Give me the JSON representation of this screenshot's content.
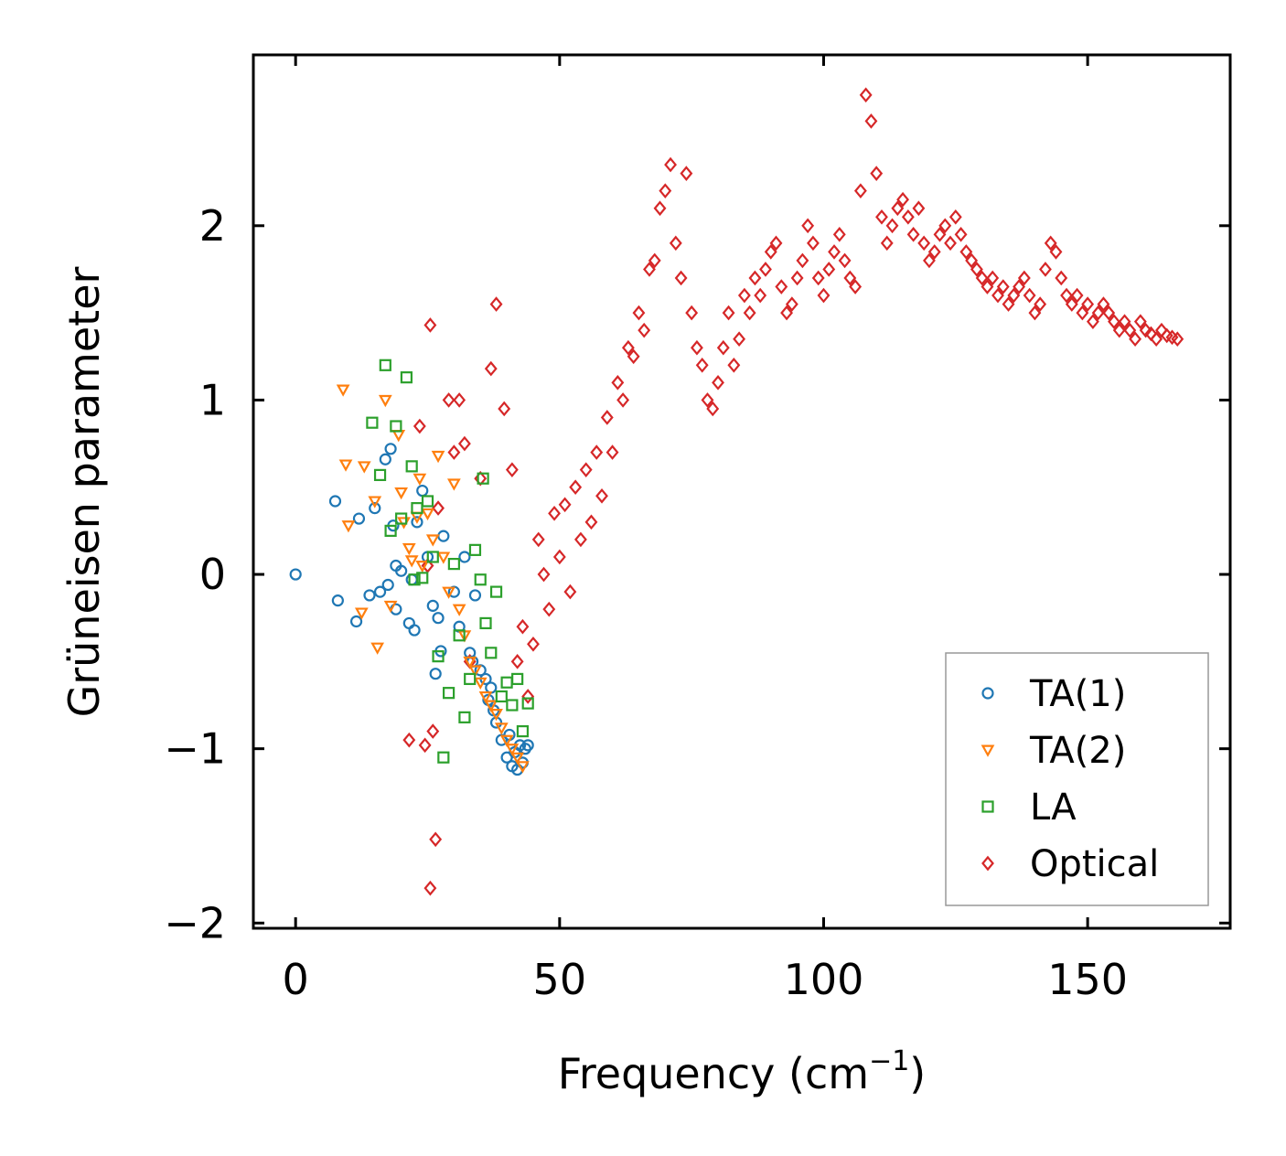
{
  "chart_data": {
    "type": "scatter",
    "title": "",
    "xlabel": "Frequency (cm",
    "xlabel_superscript": "−1",
    "xlabel_suffix": ")",
    "ylabel": "Grüneisen parameter",
    "xlim": [
      -8,
      177
    ],
    "ylim": [
      -2.03,
      2.98
    ],
    "xticks": [
      0,
      50,
      100,
      150
    ],
    "xtick_labels": [
      "0",
      "50",
      "100",
      "150"
    ],
    "yticks": [
      -2,
      -1,
      0,
      1,
      2
    ],
    "ytick_labels": [
      "−2",
      "−1",
      "0",
      "1",
      "2"
    ],
    "grid": false,
    "legend_position": "bottom-right",
    "series": [
      {
        "name": "TA(1)",
        "marker": "circle",
        "color": "#1f77b4",
        "x": [
          0,
          7.5,
          8,
          11.5,
          12,
          14,
          15,
          16,
          17,
          17.5,
          18,
          18.5,
          19,
          19,
          20,
          21.5,
          22,
          22.5,
          23,
          24,
          25,
          26,
          26.5,
          27,
          27.5,
          28,
          30,
          31,
          32,
          33,
          33.5,
          34,
          35,
          36,
          36.5,
          37,
          37.5,
          38,
          39,
          40,
          40.5,
          41,
          41.5,
          42,
          42.5,
          43,
          43.5,
          44
        ],
        "y": [
          0.0,
          0.42,
          -0.15,
          -0.27,
          0.32,
          -0.12,
          0.38,
          -0.1,
          0.66,
          -0.06,
          0.72,
          0.28,
          -0.2,
          0.05,
          0.02,
          -0.28,
          -0.03,
          -0.32,
          0.3,
          0.48,
          0.1,
          -0.18,
          -0.57,
          -0.25,
          -0.44,
          0.22,
          -0.1,
          -0.3,
          0.1,
          -0.45,
          -0.5,
          -0.12,
          -0.55,
          -0.6,
          -0.72,
          -0.65,
          -0.78,
          -0.85,
          -0.95,
          -1.05,
          -0.92,
          -1.1,
          -1.02,
          -1.12,
          -0.98,
          -1.08,
          -1.0,
          -0.98
        ]
      },
      {
        "name": "TA(2)",
        "marker": "triangle-down",
        "color": "#ff7f0e",
        "x": [
          9,
          9.5,
          10,
          12.5,
          13,
          15,
          15.5,
          17,
          18,
          19.5,
          20,
          20.5,
          21.5,
          22,
          23,
          23.5,
          24,
          25,
          26,
          27,
          28,
          29,
          30,
          31,
          32,
          33,
          34,
          35,
          36,
          37,
          38,
          39,
          40,
          41,
          42,
          43
        ],
        "y": [
          1.06,
          0.63,
          0.28,
          -0.22,
          0.62,
          0.42,
          -0.42,
          1.0,
          -0.18,
          0.8,
          0.47,
          0.3,
          0.15,
          0.08,
          0.33,
          0.55,
          0.05,
          0.35,
          0.2,
          0.68,
          0.1,
          -0.1,
          0.52,
          -0.2,
          -0.35,
          -0.5,
          -0.55,
          -0.62,
          -0.7,
          -0.75,
          -0.8,
          -0.88,
          -0.95,
          -1.0,
          -1.05,
          -1.1
        ]
      },
      {
        "name": "LA",
        "marker": "square",
        "color": "#2ca02c",
        "x": [
          14.5,
          16,
          17,
          18,
          19,
          20,
          21,
          22,
          22.5,
          23,
          24,
          25,
          26,
          27,
          28,
          29,
          30,
          31,
          32,
          33,
          34,
          35,
          35.5,
          36,
          37,
          38,
          39,
          40,
          41,
          42,
          43,
          44
        ],
        "y": [
          0.87,
          0.57,
          1.2,
          0.25,
          0.85,
          0.32,
          1.13,
          0.62,
          -0.03,
          0.38,
          -0.02,
          0.42,
          0.1,
          -0.47,
          -1.05,
          -0.68,
          0.06,
          -0.35,
          -0.82,
          -0.6,
          0.14,
          -0.03,
          0.55,
          -0.28,
          -0.45,
          -0.1,
          -0.7,
          -0.62,
          -0.75,
          -0.6,
          -0.9,
          -0.74
        ]
      },
      {
        "name": "Optical",
        "marker": "diamond",
        "color": "#d62728",
        "x": [
          25.5,
          25.5,
          26,
          26.5,
          21.5,
          23.5,
          24.5,
          25,
          27,
          29,
          30,
          31,
          32,
          33,
          35,
          37,
          38,
          39.5,
          41,
          42,
          43,
          44,
          45,
          46,
          47,
          48,
          49,
          50,
          51,
          52,
          53,
          54,
          55,
          56,
          57,
          58,
          59,
          60,
          61,
          62,
          63,
          64,
          65,
          66,
          67,
          68,
          69,
          70,
          71,
          72,
          73,
          74,
          75,
          76,
          77,
          78,
          79,
          80,
          81,
          82,
          83,
          84,
          85,
          86,
          87,
          88,
          89,
          90,
          91,
          92,
          93,
          94,
          95,
          96,
          97,
          98,
          99,
          100,
          101,
          102,
          103,
          104,
          105,
          106,
          107,
          108,
          109,
          110,
          111,
          112,
          113,
          114,
          115,
          116,
          117,
          118,
          119,
          120,
          121,
          122,
          123,
          124,
          125,
          126,
          127,
          128,
          129,
          130,
          131,
          132,
          133,
          134,
          135,
          136,
          137,
          138,
          139,
          140,
          141,
          142,
          143,
          144,
          145,
          146,
          147,
          148,
          149,
          150,
          151,
          152,
          153,
          154,
          155,
          156,
          157,
          158,
          159,
          160,
          161,
          162,
          163,
          164,
          165,
          166,
          167
        ],
        "y": [
          1.43,
          -1.8,
          -0.9,
          -1.52,
          -0.95,
          0.85,
          -0.98,
          0.05,
          0.38,
          1.0,
          0.7,
          1.0,
          0.75,
          -0.5,
          0.55,
          1.18,
          1.55,
          0.95,
          0.6,
          -0.5,
          -0.3,
          -0.7,
          -0.4,
          0.2,
          0.0,
          -0.2,
          0.35,
          0.1,
          0.4,
          -0.1,
          0.5,
          0.2,
          0.6,
          0.3,
          0.7,
          0.45,
          0.9,
          0.7,
          1.1,
          1.0,
          1.3,
          1.25,
          1.5,
          1.4,
          1.75,
          1.8,
          2.1,
          2.2,
          2.35,
          1.9,
          1.7,
          2.3,
          1.5,
          1.3,
          1.2,
          1.0,
          0.95,
          1.1,
          1.3,
          1.5,
          1.2,
          1.35,
          1.6,
          1.5,
          1.7,
          1.6,
          1.75,
          1.85,
          1.9,
          1.65,
          1.5,
          1.55,
          1.7,
          1.8,
          2.0,
          1.9,
          1.7,
          1.6,
          1.75,
          1.85,
          1.95,
          1.8,
          1.7,
          1.65,
          2.2,
          2.75,
          2.6,
          2.3,
          2.05,
          1.9,
          2.0,
          2.1,
          2.15,
          2.05,
          1.95,
          2.1,
          1.9,
          1.8,
          1.85,
          1.95,
          2.0,
          1.9,
          2.05,
          1.95,
          1.85,
          1.8,
          1.75,
          1.7,
          1.65,
          1.7,
          1.6,
          1.65,
          1.55,
          1.6,
          1.65,
          1.7,
          1.6,
          1.5,
          1.55,
          1.75,
          1.9,
          1.85,
          1.7,
          1.6,
          1.55,
          1.6,
          1.5,
          1.55,
          1.45,
          1.5,
          1.55,
          1.5,
          1.45,
          1.4,
          1.45,
          1.4,
          1.35,
          1.45,
          1.4,
          1.38,
          1.35,
          1.4,
          1.37,
          1.36,
          1.35
        ]
      }
    ]
  }
}
